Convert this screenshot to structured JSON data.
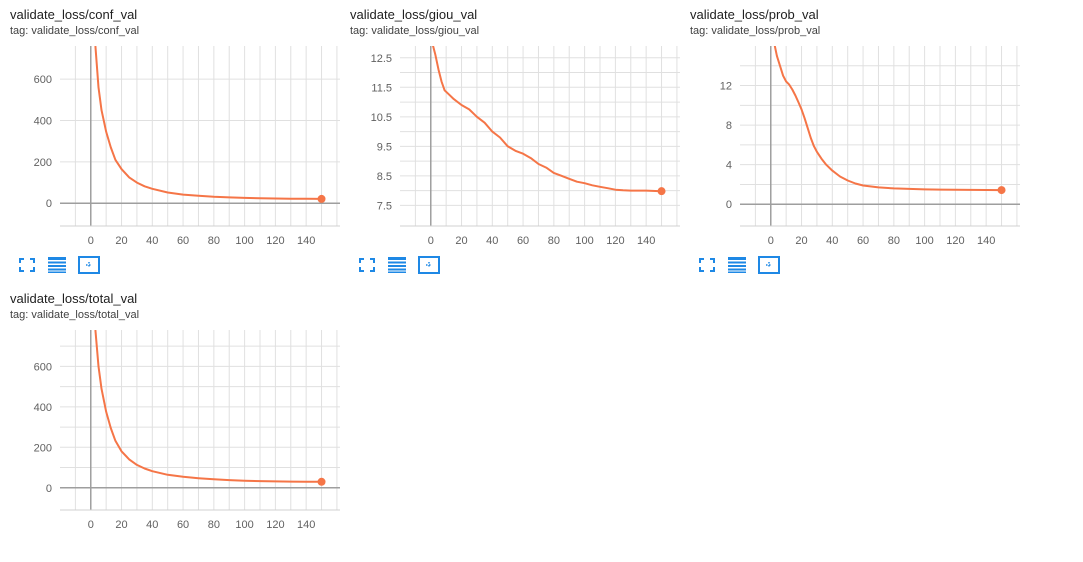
{
  "colors": {
    "series": "#f57547",
    "grid": "#e0e0e0",
    "axis": "#9e9e9e",
    "icon": "#1e88e5"
  },
  "toolbar": {
    "fullscreen_icon": "fullscreen-icon",
    "data_icon": "data-table-icon",
    "fit_icon": "fit-domain-icon"
  },
  "chart_data": [
    {
      "type": "line",
      "title": "validate_loss/conf_val",
      "tag": "tag: validate_loss/conf_val",
      "xlim": [
        -20,
        162
      ],
      "ylim": [
        -110,
        760
      ],
      "x_ticks": [
        0,
        20,
        40,
        60,
        80,
        100,
        120,
        140
      ],
      "y_ticks": [
        0,
        200,
        400,
        600
      ],
      "y_ticks_labeled": [
        0,
        200,
        400,
        600
      ],
      "series": [
        {
          "x": [
            3,
            5,
            7,
            10,
            13,
            16,
            20,
            25,
            30,
            35,
            40,
            50,
            60,
            70,
            80,
            90,
            100,
            110,
            120,
            130,
            140,
            150
          ],
          "values": [
            760,
            560,
            450,
            345,
            270,
            210,
            165,
            125,
            100,
            82,
            70,
            52,
            42,
            36,
            31,
            28,
            26,
            24,
            23,
            22,
            21.5,
            21
          ]
        }
      ]
    },
    {
      "type": "line",
      "title": "validate_loss/giou_val",
      "tag": "tag: validate_loss/giou_val",
      "xlim": [
        -20,
        162
      ],
      "ylim": [
        6.8,
        12.9
      ],
      "x_ticks": [
        0,
        20,
        40,
        60,
        80,
        100,
        120,
        140
      ],
      "y_ticks": [
        7.5,
        8,
        8.5,
        9,
        9.5,
        10,
        10.5,
        11,
        11.5,
        12,
        12.5
      ],
      "y_ticks_labeled": [
        7.5,
        8.5,
        9.5,
        10.5,
        11.5,
        12.5
      ],
      "series": [
        {
          "x": [
            1,
            3,
            5,
            7,
            9,
            12,
            15,
            20,
            25,
            30,
            35,
            40,
            45,
            50,
            55,
            60,
            65,
            70,
            75,
            80,
            85,
            90,
            95,
            100,
            105,
            110,
            115,
            120,
            125,
            130,
            140,
            150
          ],
          "values": [
            13.0,
            12.6,
            12.1,
            11.7,
            11.4,
            11.25,
            11.1,
            10.9,
            10.75,
            10.5,
            10.3,
            10.0,
            9.8,
            9.5,
            9.35,
            9.25,
            9.1,
            8.9,
            8.78,
            8.6,
            8.5,
            8.4,
            8.3,
            8.25,
            8.18,
            8.13,
            8.08,
            8.03,
            8.01,
            8.0,
            8.0,
            7.98
          ]
        }
      ]
    },
    {
      "type": "line",
      "title": "validate_loss/prob_val",
      "tag": "tag: validate_loss/prob_val",
      "xlim": [
        -20,
        162
      ],
      "ylim": [
        -2.2,
        16.0
      ],
      "x_ticks": [
        0,
        20,
        40,
        60,
        80,
        100,
        120,
        140
      ],
      "y_ticks": [
        0,
        2,
        4,
        6,
        8,
        10,
        12,
        14
      ],
      "y_ticks_labeled": [
        0,
        4,
        8,
        12
      ],
      "series": [
        {
          "x": [
            2,
            4,
            6,
            8,
            10,
            12,
            14,
            16,
            18,
            20,
            22,
            24,
            26,
            28,
            30,
            33,
            36,
            40,
            45,
            50,
            55,
            60,
            70,
            80,
            90,
            100,
            110,
            120,
            130,
            140,
            150
          ],
          "values": [
            16.5,
            15.0,
            14.0,
            13.0,
            12.4,
            12.1,
            11.6,
            11.0,
            10.3,
            9.6,
            8.7,
            7.7,
            6.7,
            5.9,
            5.3,
            4.6,
            4.0,
            3.4,
            2.8,
            2.4,
            2.1,
            1.9,
            1.7,
            1.6,
            1.55,
            1.5,
            1.48,
            1.46,
            1.45,
            1.44,
            1.43
          ]
        }
      ]
    },
    {
      "type": "line",
      "title": "validate_loss/total_val",
      "tag": "tag: validate_loss/total_val",
      "xlim": [
        -20,
        162
      ],
      "ylim": [
        -110,
        780
      ],
      "x_ticks": [
        0,
        20,
        40,
        60,
        80,
        100,
        120,
        140
      ],
      "y_ticks": [
        0,
        100,
        200,
        300,
        400,
        500,
        600,
        700
      ],
      "y_ticks_labeled": [
        0,
        200,
        400,
        600
      ],
      "series": [
        {
          "x": [
            3,
            5,
            7,
            10,
            13,
            16,
            20,
            25,
            30,
            35,
            40,
            50,
            60,
            70,
            80,
            90,
            100,
            110,
            120,
            130,
            140,
            150
          ],
          "values": [
            780,
            600,
            490,
            375,
            295,
            232,
            180,
            140,
            113,
            95,
            82,
            64,
            54,
            47,
            42,
            38,
            35,
            33,
            31.5,
            30.5,
            30,
            29.5
          ]
        }
      ]
    }
  ]
}
